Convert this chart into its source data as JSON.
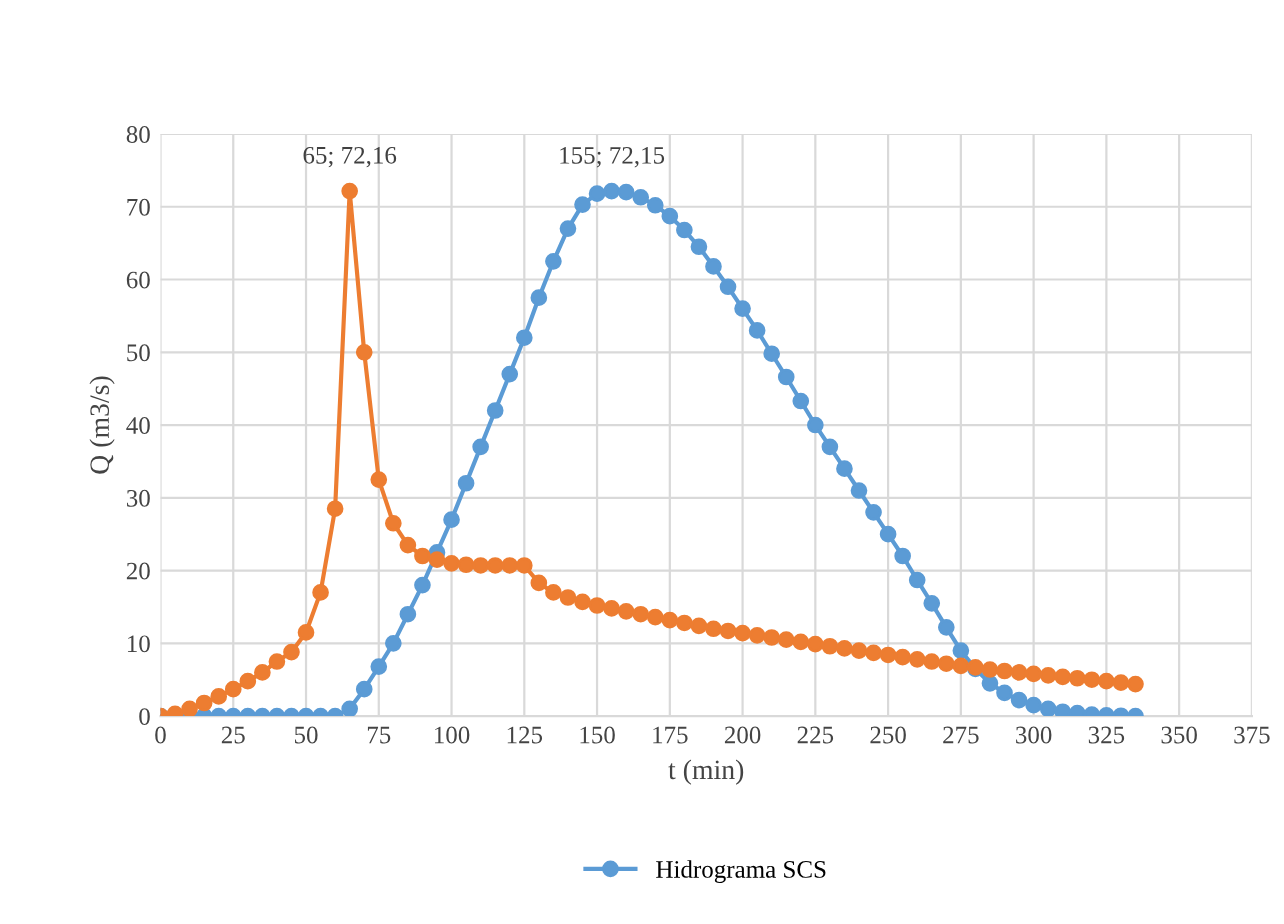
{
  "chart_data": {
    "type": "line",
    "xlabel": "t (min)",
    "ylabel": "Q (m3/s)",
    "x": [
      0,
      5,
      10,
      15,
      20,
      25,
      30,
      35,
      40,
      45,
      50,
      55,
      60,
      65,
      70,
      75,
      80,
      85,
      90,
      95,
      100,
      105,
      110,
      115,
      120,
      125,
      130,
      135,
      140,
      145,
      150,
      155,
      160,
      165,
      170,
      175,
      180,
      185,
      190,
      195,
      200,
      205,
      210,
      215,
      220,
      225,
      230,
      235,
      240,
      245,
      250,
      255,
      260,
      265,
      270,
      275,
      280,
      285,
      290,
      295,
      300,
      305,
      310,
      315,
      320,
      325,
      330,
      335
    ],
    "series": [
      {
        "name": "Hidrograma SCS",
        "color": "#5b9bd5",
        "values": [
          0,
          0,
          0,
          0,
          0,
          0,
          0,
          0,
          0,
          0,
          0,
          0,
          0,
          1,
          3.7,
          6.8,
          10,
          14,
          18,
          22.5,
          27,
          32,
          37,
          42,
          47,
          52,
          57.5,
          62.5,
          67,
          70.3,
          71.8,
          72.15,
          72,
          71.3,
          70.2,
          68.7,
          66.8,
          64.5,
          61.8,
          59,
          56,
          53,
          49.8,
          46.6,
          43.3,
          40,
          37,
          34,
          31,
          28,
          25,
          22,
          18.7,
          15.5,
          12.2,
          9,
          6.5,
          4.5,
          3.2,
          2.2,
          1.5,
          1,
          0.6,
          0.4,
          0.2,
          0.1,
          0.05,
          0
        ]
      },
      {
        "color": "#ed7d31",
        "values": [
          0,
          0.3,
          1,
          1.8,
          2.7,
          3.7,
          4.8,
          6,
          7.5,
          8.8,
          11.5,
          17,
          28.5,
          72.16,
          50,
          32.5,
          26.5,
          23.5,
          22,
          21.5,
          21,
          20.8,
          20.7,
          20.7,
          20.7,
          20.7,
          18.3,
          17,
          16.3,
          15.7,
          15.2,
          14.8,
          14.4,
          14,
          13.6,
          13.2,
          12.8,
          12.4,
          12,
          11.7,
          11.4,
          11.1,
          10.8,
          10.5,
          10.2,
          9.9,
          9.6,
          9.3,
          9,
          8.7,
          8.4,
          8.1,
          7.8,
          7.5,
          7.2,
          6.9,
          6.7,
          6.4,
          6.2,
          6,
          5.8,
          5.6,
          5.4,
          5.2,
          5,
          4.8,
          4.6,
          4.4
        ]
      }
    ],
    "annotations": [
      {
        "text": "65; 72,16",
        "x": 65,
        "y": 72.16
      },
      {
        "text": "155; 72,15",
        "x": 155,
        "y": 72.15
      }
    ],
    "xlim": [
      0,
      375
    ],
    "xticks": [
      0,
      25,
      50,
      75,
      100,
      125,
      150,
      175,
      200,
      225,
      250,
      275,
      300,
      325,
      350,
      375
    ],
    "ylim": [
      0,
      80
    ],
    "yticks": [
      0,
      10,
      20,
      30,
      40,
      50,
      60,
      70,
      80
    ],
    "grid": true,
    "legend": "bottom",
    "marker": "circle",
    "line_style": "solid"
  }
}
